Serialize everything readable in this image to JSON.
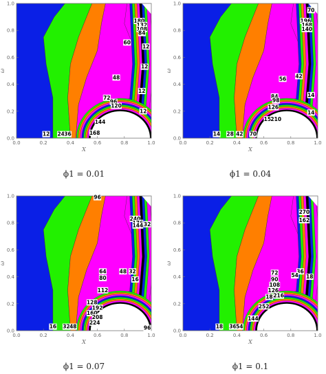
{
  "figure": {
    "panels": [
      {
        "caption": "ϕ1 = 0.01"
      },
      {
        "caption": "ϕ1 = 0.04"
      },
      {
        "caption": "ϕ1 = 0.07"
      },
      {
        "caption": "ϕ1 = 0.1"
      }
    ]
  },
  "colors": {
    "blue": "#0a1fe6",
    "green": "#22f000",
    "orange": "#ff7f00",
    "magenta": "#ff00ff",
    "black": "#000000",
    "white": "#ffffff"
  },
  "chart_data": [
    {
      "type": "contour",
      "caption": "ϕ1 = 0.01",
      "xlabel": "X",
      "ylabel": "ω",
      "xlim": [
        0,
        1
      ],
      "ylim": [
        0,
        1
      ],
      "xticks": [
        "0.0",
        "0.2",
        "0.4",
        "0.6",
        "0.8",
        "1.0"
      ],
      "yticks": [
        "0.0",
        "0.2",
        "0.4",
        "0.6",
        "0.8",
        "1.0"
      ],
      "contour_labels": [
        {
          "text": "180",
          "x": 0.91,
          "y": 0.87
        },
        {
          "text": "132",
          "x": 0.93,
          "y": 0.84
        },
        {
          "text": "108",
          "x": 0.93,
          "y": 0.81
        },
        {
          "text": "84",
          "x": 0.93,
          "y": 0.78
        },
        {
          "text": "60",
          "x": 0.82,
          "y": 0.71
        },
        {
          "text": "12",
          "x": 0.96,
          "y": 0.68
        },
        {
          "text": "12",
          "x": 0.95,
          "y": 0.53
        },
        {
          "text": "48",
          "x": 0.74,
          "y": 0.45
        },
        {
          "text": "72",
          "x": 0.67,
          "y": 0.3
        },
        {
          "text": "12",
          "x": 0.93,
          "y": 0.35
        },
        {
          "text": "96",
          "x": 0.72,
          "y": 0.27
        },
        {
          "text": "120",
          "x": 0.74,
          "y": 0.24
        },
        {
          "text": "12",
          "x": 0.94,
          "y": 0.2
        },
        {
          "text": "144",
          "x": 0.62,
          "y": 0.12
        },
        {
          "text": "12",
          "x": 0.22,
          "y": 0.03
        },
        {
          "text": "24",
          "x": 0.33,
          "y": 0.03
        },
        {
          "text": "36",
          "x": 0.38,
          "y": 0.03
        },
        {
          "text": "168",
          "x": 0.58,
          "y": 0.04
        }
      ]
    },
    {
      "type": "contour",
      "caption": "ϕ1 = 0.04",
      "xlabel": "X",
      "ylabel": "ω",
      "xlim": [
        0,
        1
      ],
      "ylim": [
        0,
        1
      ],
      "xticks": [
        "0.0",
        "0.2",
        "0.4",
        "0.6",
        "0.8",
        "1.0"
      ],
      "yticks": [
        "0.0",
        "0.2",
        "0.4",
        "0.6",
        "0.8",
        "1.0"
      ],
      "contour_labels": [
        {
          "text": "70",
          "x": 0.95,
          "y": 0.95
        },
        {
          "text": "196",
          "x": 0.91,
          "y": 0.87
        },
        {
          "text": "168",
          "x": 0.92,
          "y": 0.84
        },
        {
          "text": "140",
          "x": 0.92,
          "y": 0.81
        },
        {
          "text": "42",
          "x": 0.86,
          "y": 0.46
        },
        {
          "text": "56",
          "x": 0.74,
          "y": 0.44
        },
        {
          "text": "84",
          "x": 0.68,
          "y": 0.31
        },
        {
          "text": "98",
          "x": 0.69,
          "y": 0.28
        },
        {
          "text": "126",
          "x": 0.67,
          "y": 0.23
        },
        {
          "text": "14",
          "x": 0.95,
          "y": 0.32
        },
        {
          "text": "14",
          "x": 0.95,
          "y": 0.19
        },
        {
          "text": "154",
          "x": 0.64,
          "y": 0.14
        },
        {
          "text": "210",
          "x": 0.69,
          "y": 0.14
        },
        {
          "text": "14",
          "x": 0.25,
          "y": 0.03
        },
        {
          "text": "28",
          "x": 0.35,
          "y": 0.03
        },
        {
          "text": "42",
          "x": 0.42,
          "y": 0.03
        },
        {
          "text": "70",
          "x": 0.52,
          "y": 0.03
        }
      ]
    },
    {
      "type": "contour",
      "caption": "ϕ1 = 0.07",
      "xlabel": "X",
      "ylabel": "ω",
      "xlim": [
        0,
        1
      ],
      "ylim": [
        0,
        1
      ],
      "xticks": [
        "0.0",
        "0.2",
        "0.4",
        "0.6",
        "0.8",
        "1.0"
      ],
      "yticks": [
        "0.0",
        "0.2",
        "0.4",
        "0.6",
        "0.8",
        "1.0"
      ],
      "contour_labels": [
        {
          "text": "96",
          "x": 0.6,
          "y": 0.99
        },
        {
          "text": "240",
          "x": 0.88,
          "y": 0.83
        },
        {
          "text": "176",
          "x": 0.9,
          "y": 0.8
        },
        {
          "text": "144",
          "x": 0.9,
          "y": 0.78
        },
        {
          "text": "32",
          "x": 0.97,
          "y": 0.79
        },
        {
          "text": "64",
          "x": 0.64,
          "y": 0.44
        },
        {
          "text": "48",
          "x": 0.79,
          "y": 0.44
        },
        {
          "text": "32",
          "x": 0.86,
          "y": 0.44
        },
        {
          "text": "80",
          "x": 0.64,
          "y": 0.39
        },
        {
          "text": "16",
          "x": 0.88,
          "y": 0.38
        },
        {
          "text": "112",
          "x": 0.64,
          "y": 0.3
        },
        {
          "text": "128",
          "x": 0.56,
          "y": 0.21
        },
        {
          "text": "192",
          "x": 0.6,
          "y": 0.17
        },
        {
          "text": "160",
          "x": 0.56,
          "y": 0.13
        },
        {
          "text": "208",
          "x": 0.6,
          "y": 0.1
        },
        {
          "text": "224",
          "x": 0.58,
          "y": 0.06
        },
        {
          "text": "16",
          "x": 0.27,
          "y": 0.03
        },
        {
          "text": "32",
          "x": 0.37,
          "y": 0.03
        },
        {
          "text": "48",
          "x": 0.42,
          "y": 0.03
        },
        {
          "text": "96",
          "x": 0.97,
          "y": 0.02
        }
      ]
    },
    {
      "type": "contour",
      "caption": "ϕ1 = 0.1",
      "xlabel": "X",
      "ylabel": "ω",
      "xlim": [
        0,
        1
      ],
      "ylim": [
        0,
        1
      ],
      "xticks": [
        "0.0",
        "0.2",
        "0.4",
        "0.6",
        "0.8",
        "1.0"
      ],
      "yticks": [
        "0.0",
        "0.2",
        "0.4",
        "0.6",
        "0.8",
        "1.0"
      ],
      "contour_labels": [
        {
          "text": "270",
          "x": 0.9,
          "y": 0.88
        },
        {
          "text": "162",
          "x": 0.9,
          "y": 0.82
        },
        {
          "text": "36",
          "x": 0.87,
          "y": 0.44
        },
        {
          "text": "54",
          "x": 0.83,
          "y": 0.41
        },
        {
          "text": "18",
          "x": 0.94,
          "y": 0.4
        },
        {
          "text": "72",
          "x": 0.68,
          "y": 0.43
        },
        {
          "text": "90",
          "x": 0.68,
          "y": 0.38
        },
        {
          "text": "108",
          "x": 0.68,
          "y": 0.34
        },
        {
          "text": "126",
          "x": 0.67,
          "y": 0.3
        },
        {
          "text": "18",
          "x": 0.64,
          "y": 0.25
        },
        {
          "text": "216",
          "x": 0.71,
          "y": 0.26
        },
        {
          "text": "252",
          "x": 0.6,
          "y": 0.18
        },
        {
          "text": "144",
          "x": 0.52,
          "y": 0.09
        },
        {
          "text": "18",
          "x": 0.27,
          "y": 0.03
        },
        {
          "text": "36",
          "x": 0.37,
          "y": 0.03
        },
        {
          "text": "54",
          "x": 0.42,
          "y": 0.03
        }
      ]
    }
  ]
}
